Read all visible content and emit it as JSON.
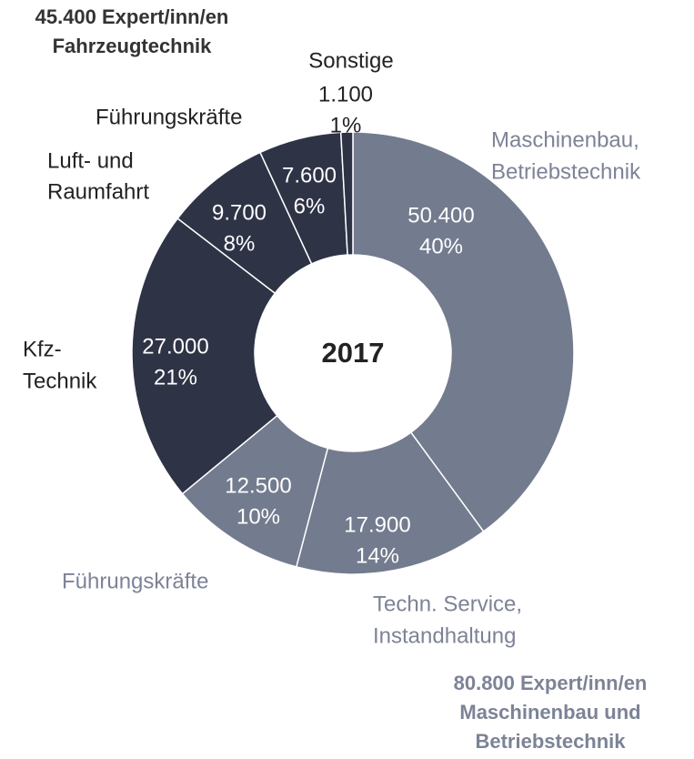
{
  "chart_data": {
    "type": "donut",
    "center_label": "2017",
    "categories": [
      [
        "Maschinenbau,",
        "Betriebstechnik"
      ],
      [
        "Techn. Service,",
        "Instandhaltung"
      ],
      [
        "Führungskräfte"
      ],
      [
        "Kfz-",
        "Technik"
      ],
      [
        "Luft- und",
        "Raumfahrt"
      ],
      [
        "Führungskräfte"
      ],
      [
        "Sonstige"
      ]
    ],
    "values": [
      50400,
      17900,
      12500,
      27000,
      9700,
      7600,
      1100
    ],
    "value_labels": [
      "50.400",
      "17.900",
      "12.500",
      "27.000",
      "9.700",
      "7.600",
      "1.100"
    ],
    "percent_labels": [
      "40%",
      "14%",
      "10%",
      "21%",
      "8%",
      "6%",
      "1%"
    ],
    "colors": [
      "#737b8e",
      "#737b8e",
      "#737b8e",
      "#2e3346",
      "#2e3346",
      "#2e3346",
      "#2e3346"
    ],
    "name_colors": [
      "#7d8396",
      "#7d8396",
      "#7d8396",
      "#222222",
      "#222222",
      "#222222",
      "#222222"
    ],
    "annotations": [
      {
        "lines": [
          "45.400 Expert/inn/en",
          "Fahrzeugtechnik"
        ],
        "color": "#333333"
      },
      {
        "lines": [
          "80.800 Expert/inn/en",
          "Maschinenbau und",
          "Betriebstechnik"
        ],
        "color": "#7d8396"
      }
    ]
  }
}
